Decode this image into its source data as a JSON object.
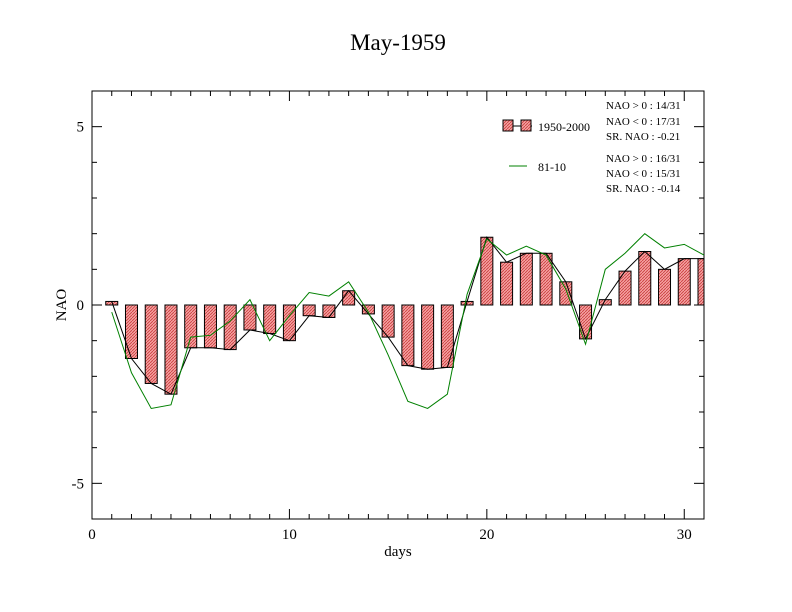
{
  "chart_data": {
    "type": "bar",
    "title": "May-1959",
    "xlabel": "days",
    "ylabel": "NAO",
    "xlim": [
      0,
      31
    ],
    "ylim": [
      -6,
      6
    ],
    "x_ticks": [
      0,
      10,
      20,
      30
    ],
    "y_ticks": [
      -5,
      0,
      5
    ],
    "grid": false,
    "legend_position": "top-right",
    "x": [
      1,
      2,
      3,
      4,
      5,
      6,
      7,
      8,
      9,
      10,
      11,
      12,
      13,
      14,
      15,
      16,
      17,
      18,
      19,
      20,
      21,
      22,
      23,
      24,
      25,
      26,
      27,
      28,
      29,
      30,
      31
    ],
    "series": [
      {
        "name": "1950-2000",
        "kind": "bar",
        "color": "#f08080",
        "values": [
          0.1,
          -1.5,
          -2.2,
          -2.5,
          -1.2,
          -1.2,
          -1.25,
          -0.7,
          -0.8,
          -1.0,
          -0.3,
          -0.35,
          0.4,
          -0.25,
          -0.9,
          -1.7,
          -1.8,
          -1.75,
          0.1,
          1.9,
          1.2,
          1.45,
          1.45,
          0.65,
          -0.95,
          0.15,
          0.95,
          1.5,
          1.0,
          1.3,
          1.3
        ]
      },
      {
        "name": "81-10",
        "kind": "line",
        "color": "#008000",
        "values": [
          -0.2,
          -1.9,
          -2.9,
          -2.8,
          -0.9,
          -0.85,
          -0.45,
          0.15,
          -1.0,
          -0.3,
          0.35,
          0.25,
          0.65,
          -0.2,
          -1.4,
          -2.7,
          -2.9,
          -2.5,
          0.3,
          1.85,
          1.4,
          1.65,
          1.4,
          0.45,
          -1.1,
          1.0,
          1.45,
          2.0,
          1.6,
          1.7,
          1.4
        ]
      }
    ],
    "stats": [
      {
        "lines": [
          "NAO > 0 : 14/31",
          "NAO < 0 : 17/31",
          "SR. NAO : -0.21"
        ]
      },
      {
        "lines": [
          "NAO > 0 : 16/31",
          "NAO < 0 : 15/31",
          "SR. NAO : -0.14"
        ]
      }
    ]
  }
}
